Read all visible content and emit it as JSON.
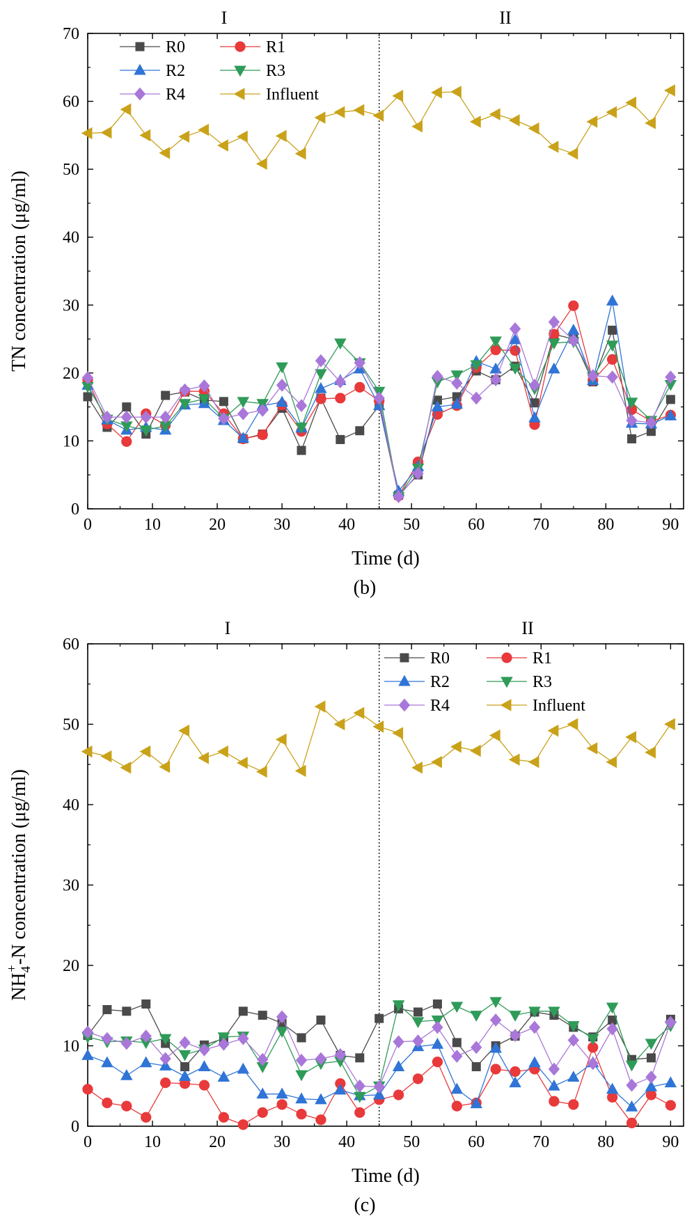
{
  "colors": {
    "R0": "#4a4a4a",
    "R1": "#e8393b",
    "R2": "#2f74d6",
    "R3": "#2f9b58",
    "R4": "#a977d9",
    "Influent": "#c9a21a"
  },
  "chart_data": [
    {
      "type": "line",
      "panel_label": "(b)",
      "xlabel": "Time (d)",
      "ylabel": "TN concentration (μg/ml)",
      "xlim": [
        0,
        92
      ],
      "ylim": [
        0,
        70
      ],
      "xticks": [
        "0",
        "10",
        "20",
        "30",
        "40",
        "50",
        "60",
        "70",
        "80",
        "90"
      ],
      "yticks": [
        "0",
        "10",
        "20",
        "30",
        "40",
        "50",
        "60",
        "70"
      ],
      "phase_divider_x": 45,
      "phase_labels": [
        "I",
        "II"
      ],
      "legend_position": "top-left",
      "x": [
        0,
        3,
        6,
        9,
        12,
        15,
        18,
        21,
        24,
        27,
        30,
        33,
        36,
        39,
        42,
        45,
        48,
        51,
        54,
        57,
        60,
        63,
        66,
        69,
        72,
        75,
        78,
        81,
        84,
        87,
        90
      ],
      "series": [
        {
          "name": "R0",
          "marker": "square",
          "values": [
            16.5,
            12.0,
            15.0,
            11.0,
            16.7,
            17.2,
            16.0,
            15.8,
            10.3,
            11.0,
            14.8,
            8.6,
            16.3,
            10.2,
            11.5,
            15.2,
            2.0,
            5.0,
            16.0,
            16.5,
            20.3,
            19.0,
            21.0,
            15.6,
            25.7,
            25.0,
            18.7,
            26.3,
            10.3,
            11.4,
            16.1
          ]
        },
        {
          "name": "R1",
          "marker": "circle",
          "values": [
            19.0,
            12.5,
            9.9,
            14.0,
            12.3,
            17.3,
            17.3,
            14.0,
            10.3,
            10.9,
            15.3,
            11.4,
            16.2,
            16.3,
            17.9,
            15.9,
            1.9,
            6.9,
            13.9,
            15.2,
            20.8,
            23.4,
            23.3,
            12.4,
            25.7,
            29.9,
            18.9,
            22.0,
            14.6,
            12.9,
            13.8
          ]
        },
        {
          "name": "R2",
          "marker": "triangle-up",
          "values": [
            18.2,
            13.1,
            11.6,
            12.0,
            11.6,
            15.3,
            15.5,
            13.0,
            10.4,
            15.2,
            15.7,
            11.9,
            17.7,
            18.9,
            20.6,
            15.2,
            2.6,
            6.2,
            15.0,
            15.4,
            21.7,
            20.6,
            24.9,
            13.4,
            20.6,
            26.3,
            18.9,
            30.6,
            12.6,
            12.5,
            13.7
          ]
        },
        {
          "name": "R3",
          "marker": "triangle-down",
          "values": [
            18.0,
            13.2,
            12.2,
            11.6,
            12.2,
            15.5,
            16.2,
            13.3,
            15.8,
            15.5,
            20.9,
            12.0,
            19.9,
            24.4,
            21.5,
            17.3,
            1.8,
            6.0,
            18.7,
            19.7,
            21.2,
            24.7,
            20.7,
            17.7,
            24.4,
            24.6,
            19.4,
            24.1,
            15.7,
            13.0,
            18.3
          ]
        },
        {
          "name": "R4",
          "marker": "diamond",
          "values": [
            19.3,
            13.5,
            13.5,
            13.5,
            13.5,
            17.5,
            18.1,
            13.3,
            14.0,
            14.5,
            18.2,
            15.2,
            21.8,
            18.7,
            21.5,
            16.3,
            1.8,
            5.2,
            19.5,
            18.5,
            16.3,
            19.0,
            26.5,
            18.2,
            27.5,
            24.8,
            19.6,
            19.4,
            13.0,
            12.7,
            19.4
          ]
        },
        {
          "name": "Influent",
          "marker": "triangle-left",
          "values": [
            55.3,
            55.4,
            58.8,
            55.0,
            52.4,
            54.8,
            55.8,
            53.5,
            54.8,
            50.8,
            54.9,
            52.3,
            57.6,
            58.4,
            58.7,
            57.9,
            60.8,
            56.3,
            61.3,
            61.4,
            57.0,
            58.1,
            57.2,
            56.0,
            53.3,
            52.3,
            57.0,
            58.4,
            59.8,
            56.8,
            61.6
          ]
        }
      ]
    },
    {
      "type": "line",
      "panel_label": "(c)",
      "xlabel": "Time (d)",
      "ylabel_main": "NH",
      "ylabel_sub": "4",
      "ylabel_sup": "+",
      "ylabel_rest": "-N concentration (μg/ml)",
      "xlim": [
        0,
        92
      ],
      "ylim": [
        0,
        60
      ],
      "xticks": [
        "0",
        "10",
        "20",
        "30",
        "40",
        "50",
        "60",
        "70",
        "80",
        "90"
      ],
      "yticks": [
        "0",
        "10",
        "20",
        "30",
        "40",
        "50",
        "60"
      ],
      "phase_divider_x": 45,
      "phase_labels": [
        "I",
        "II"
      ],
      "legend_position": "top-right",
      "x": [
        0,
        3,
        6,
        9,
        12,
        15,
        18,
        21,
        24,
        27,
        30,
        33,
        36,
        39,
        42,
        45,
        48,
        51,
        54,
        57,
        60,
        63,
        66,
        69,
        72,
        75,
        78,
        81,
        84,
        87,
        90
      ],
      "series": [
        {
          "name": "R0",
          "marker": "square",
          "values": [
            11.3,
            14.5,
            14.3,
            15.2,
            10.3,
            7.4,
            10.1,
            10.9,
            14.3,
            13.8,
            12.8,
            11.0,
            13.2,
            8.8,
            8.5,
            13.4,
            14.6,
            14.2,
            15.2,
            10.4,
            7.4,
            10.0,
            11.2,
            14.2,
            13.8,
            12.3,
            11.1,
            13.2,
            8.3,
            8.5,
            13.3
          ]
        },
        {
          "name": "R1",
          "marker": "circle",
          "values": [
            4.6,
            2.9,
            2.5,
            1.1,
            5.4,
            5.3,
            5.1,
            1.1,
            0.2,
            1.7,
            2.7,
            1.5,
            0.8,
            5.3,
            1.7,
            3.3,
            3.9,
            5.9,
            8.0,
            2.5,
            2.9,
            7.1,
            6.8,
            7.1,
            3.1,
            2.7,
            9.8,
            3.6,
            0.4,
            3.9,
            2.6
          ]
        },
        {
          "name": "R2",
          "marker": "triangle-up",
          "values": [
            8.8,
            7.9,
            6.3,
            7.9,
            7.5,
            6.2,
            7.4,
            6.1,
            7.1,
            4.0,
            4.0,
            3.4,
            3.3,
            4.5,
            3.8,
            3.9,
            7.4,
            9.9,
            10.2,
            4.6,
            2.8,
            9.7,
            5.4,
            7.9,
            5.0,
            6.1,
            7.9,
            4.6,
            2.4,
            4.9,
            5.4
          ]
        },
        {
          "name": "R3",
          "marker": "triangle-down",
          "values": [
            11.1,
            10.5,
            10.6,
            10.4,
            10.9,
            8.9,
            9.6,
            11.1,
            11.2,
            7.4,
            11.8,
            6.4,
            7.8,
            8.1,
            3.7,
            5.0,
            15.1,
            13.0,
            13.2,
            14.9,
            13.8,
            15.5,
            13.8,
            14.3,
            14.3,
            12.5,
            10.9,
            14.8,
            7.6,
            10.3,
            12.5
          ]
        },
        {
          "name": "R4",
          "marker": "diamond",
          "values": [
            11.7,
            10.9,
            10.3,
            11.2,
            8.4,
            10.4,
            9.5,
            10.2,
            10.9,
            8.3,
            13.6,
            8.2,
            8.4,
            8.9,
            5.0,
            4.9,
            10.5,
            10.6,
            12.3,
            8.7,
            9.8,
            13.2,
            11.3,
            12.3,
            7.1,
            10.7,
            7.8,
            12.1,
            5.1,
            6.1,
            12.9
          ]
        },
        {
          "name": "Influent",
          "marker": "triangle-left",
          "values": [
            46.6,
            46.0,
            44.6,
            46.6,
            44.7,
            49.2,
            45.8,
            46.6,
            45.2,
            44.1,
            48.1,
            44.2,
            52.2,
            50.0,
            51.4,
            49.7,
            48.9,
            44.6,
            45.3,
            47.2,
            46.7,
            48.6,
            45.6,
            45.3,
            49.2,
            50.0,
            47.0,
            45.3,
            48.4,
            46.5,
            50.0
          ]
        }
      ]
    }
  ]
}
